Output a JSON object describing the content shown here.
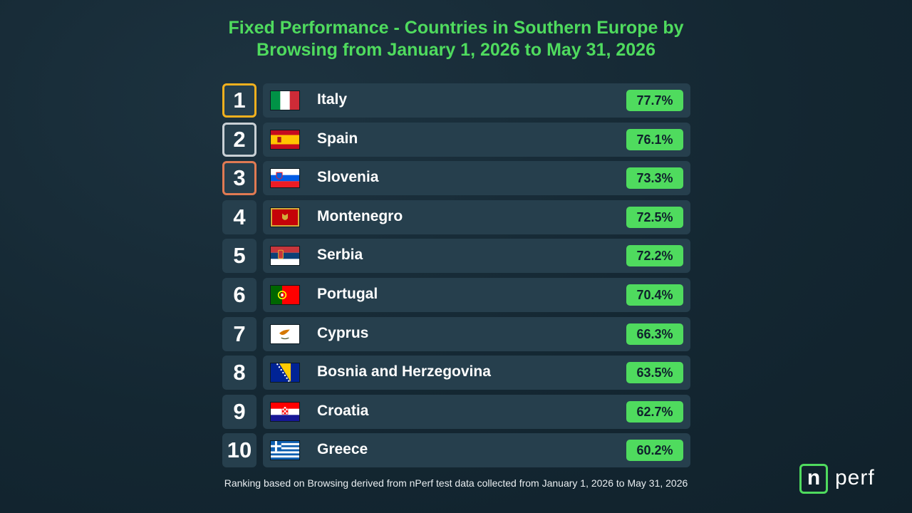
{
  "chart_data": {
    "type": "bar",
    "title_lines": [
      "Fixed Performance - Countries in Southern Europe by",
      "Browsing from January 1, 2026 to May 31, 2026"
    ],
    "categories": [
      "Italy",
      "Spain",
      "Slovenia",
      "Montenegro",
      "Serbia",
      "Portugal",
      "Cyprus",
      "Bosnia and Herzegovina",
      "Croatia",
      "Greece"
    ],
    "ranks": [
      "1",
      "2",
      "3",
      "4",
      "5",
      "6",
      "7",
      "8",
      "9",
      "10"
    ],
    "values": [
      77.7,
      76.1,
      73.3,
      72.5,
      72.2,
      70.4,
      66.3,
      63.5,
      62.7,
      60.2
    ],
    "value_labels": [
      "77.7%",
      "76.1%",
      "73.3%",
      "72.5%",
      "72.2%",
      "70.4%",
      "66.3%",
      "63.5%",
      "62.7%",
      "60.2%"
    ],
    "flag_icons": [
      "italy-flag-icon",
      "spain-flag-icon",
      "slovenia-flag-icon",
      "montenegro-flag-icon",
      "serbia-flag-icon",
      "portugal-flag-icon",
      "cyprus-flag-icon",
      "bosnia-and-herzegovina-flag-icon",
      "croatia-flag-icon",
      "greece-flag-icon"
    ],
    "medal_colors": [
      "#f2b01e",
      "#c9d0d5",
      "#e07a53"
    ],
    "accent_color": "#4fdb5e",
    "footnote": "Ranking based on Browsing derived from nPerf test data collected from January 1, 2026 to May 31, 2026"
  },
  "logo": {
    "box_letter": "n",
    "text": "perf"
  }
}
